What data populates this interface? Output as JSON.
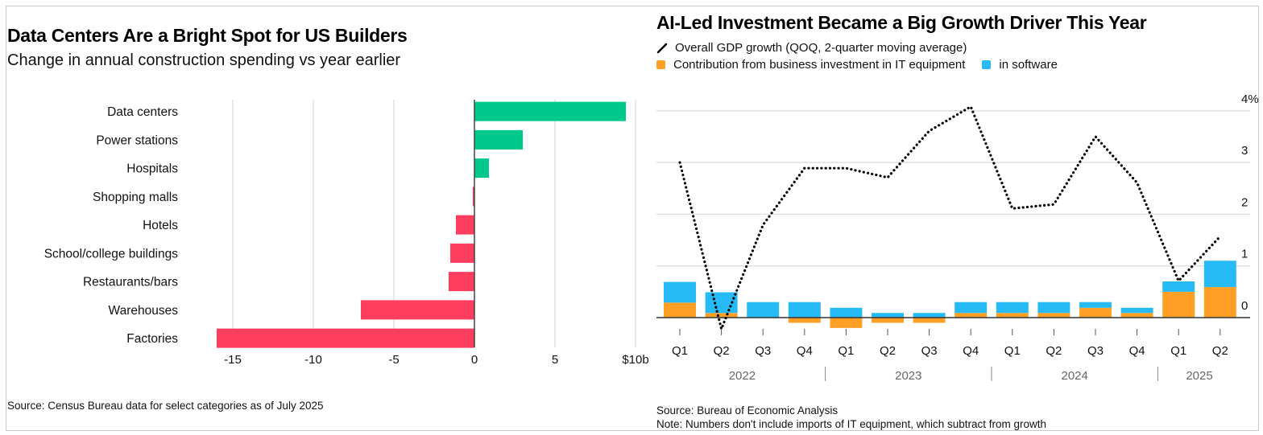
{
  "left": {
    "title": "Data Centers Are a Bright Spot for US Builders",
    "subtitle": "Change in annual construction spending vs year earlier",
    "source": "Source: Census Bureau data for select categories as of July 2025"
  },
  "right": {
    "title": "AI-Led Investment Became a Big Growth Driver This Year",
    "legend": {
      "line_label": "Overall GDP growth (QOQ, 2-quarter moving average)",
      "it_label": "Contribution from business investment in IT equipment",
      "software_label": "in software"
    },
    "source": "Source: Bureau of Economic Analysis",
    "note": "Note: Numbers don't include imports of IT equipment, which subtract from growth"
  },
  "colors": {
    "positive": "#00c98b",
    "negative": "#ff3d5e",
    "it_equipment": "#ff9f26",
    "software": "#26bbf7",
    "line": "#000000",
    "grid": "#e0e0e0"
  },
  "chart_data": [
    {
      "type": "bar",
      "orientation": "horizontal",
      "title": "Data Centers Are a Bright Spot for US Builders",
      "subtitle": "Change in annual construction spending vs year earlier",
      "categories": [
        "Data centers",
        "Power stations",
        "Hospitals",
        "Shopping malls",
        "Hotels",
        "School/college buildings",
        "Restaurants/bars",
        "Warehouses",
        "Factories"
      ],
      "values": [
        9.4,
        3.0,
        0.9,
        -0.1,
        -1.15,
        -1.5,
        -1.6,
        -7.05,
        -16.0
      ],
      "xlabel": "",
      "unit": "$ billions",
      "xlim": [
        -16,
        10
      ],
      "xticks": [
        -15,
        -10,
        -5,
        0,
        5,
        10
      ],
      "xtick_labels": [
        "-15",
        "-10",
        "-5",
        "0",
        "5",
        "$10b"
      ],
      "grid": true,
      "source": "Source: Census Bureau data for select categories as of July 2025"
    },
    {
      "type": "bar+line",
      "stacked": true,
      "title": "AI-Led Investment Became a Big Growth Driver This Year",
      "categories": [
        "Q1",
        "Q2",
        "Q3",
        "Q4",
        "Q1",
        "Q2",
        "Q3",
        "Q4",
        "Q1",
        "Q2",
        "Q3",
        "Q4",
        "Q1",
        "Q2"
      ],
      "year_groups": [
        {
          "label": "2022",
          "quarters": 4
        },
        {
          "label": "2023",
          "quarters": 4
        },
        {
          "label": "2024",
          "quarters": 4
        },
        {
          "label": "2025",
          "quarters": 2
        }
      ],
      "series": [
        {
          "name": "Contribution from business investment in IT equipment",
          "kind": "bar",
          "values": [
            0.29,
            0.09,
            0.0,
            -0.1,
            -0.2,
            -0.1,
            -0.1,
            0.09,
            0.09,
            0.09,
            0.19,
            0.09,
            0.5,
            0.59
          ]
        },
        {
          "name": "in software",
          "kind": "bar",
          "values": [
            0.4,
            0.4,
            0.3,
            0.3,
            0.19,
            0.09,
            0.09,
            0.21,
            0.21,
            0.21,
            0.11,
            0.1,
            0.2,
            0.51
          ]
        },
        {
          "name": "Overall GDP growth (QOQ, 2-quarter moving average)",
          "kind": "line",
          "style": "dotted",
          "values": [
            3.0,
            -0.22,
            1.79,
            2.89,
            2.89,
            2.71,
            3.61,
            4.08,
            2.11,
            2.19,
            3.5,
            2.61,
            0.71,
            1.57
          ]
        }
      ],
      "yticks": [
        0,
        1,
        2,
        3,
        4
      ],
      "ytick_labels": [
        "0",
        "1",
        "2",
        "3",
        "4%"
      ],
      "ylim": [
        -0.35,
        4.2
      ],
      "ylabel": "",
      "grid": true,
      "legend_position": "top-left",
      "source": "Source: Bureau of Economic Analysis",
      "note": "Note: Numbers don't include imports of IT equipment, which subtract from growth"
    }
  ]
}
